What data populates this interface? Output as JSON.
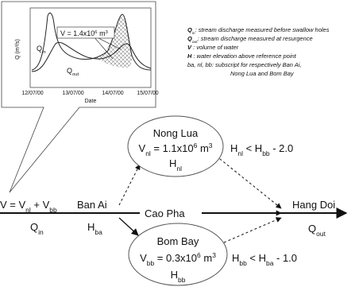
{
  "legend": [
    {
      "symbol": [
        "Q",
        "in"
      ],
      "text": ": stream discharge measured before swallow holes"
    },
    {
      "symbol": [
        "Q",
        "out"
      ],
      "text": ": stream discharge measured at resurgence"
    },
    {
      "symbol": [
        "V"
      ],
      "text": " : volume of water"
    },
    {
      "symbol": [
        "H"
      ],
      "text": " : water elevation above reference point"
    },
    {
      "text": "ba, nl, bb: subscript for respectively Ban Ai,"
    },
    {
      "text": "Nong Lua and Bom Bay"
    }
  ],
  "inset": {
    "y_label": "Q (m³/s)",
    "x_label": "Date",
    "x_ticks": [
      "12/07/00",
      "13/07/00",
      "14/07/00",
      "15/07/00"
    ],
    "q_in": [
      "Q",
      "in"
    ],
    "q_out": [
      "Q",
      "out"
    ],
    "volume": [
      "V = 1.4x10",
      "6",
      " m",
      "3"
    ]
  },
  "nodes": {
    "source": {
      "eq": [
        "V = V",
        "nl",
        " + V",
        "bb"
      ],
      "q": [
        "Q",
        "in"
      ]
    },
    "ban_ai": {
      "name": "Ban Ai",
      "h": [
        "H",
        "ba"
      ]
    },
    "cao_pha": {
      "name": "Cao Pha"
    },
    "nong_lua": {
      "name": "Nong Lua",
      "v": [
        "V",
        "nl",
        " = 1.1x10",
        "6",
        " m",
        "3"
      ],
      "h": [
        "H",
        "nl"
      ],
      "cond": [
        "H",
        "nl",
        " < H",
        "bb",
        " - 2.0"
      ]
    },
    "bom_bay": {
      "name": "Bom Bay",
      "v": [
        "V",
        "bb",
        " = 0.3x10",
        "6",
        " m",
        "3"
      ],
      "h": [
        "H",
        "bb"
      ],
      "cond": [
        "H",
        "bb",
        " < H",
        "ba",
        " - 1.0"
      ]
    },
    "hang_doi": {
      "name": "Hang Doi",
      "q": [
        "Q",
        "out"
      ]
    }
  }
}
